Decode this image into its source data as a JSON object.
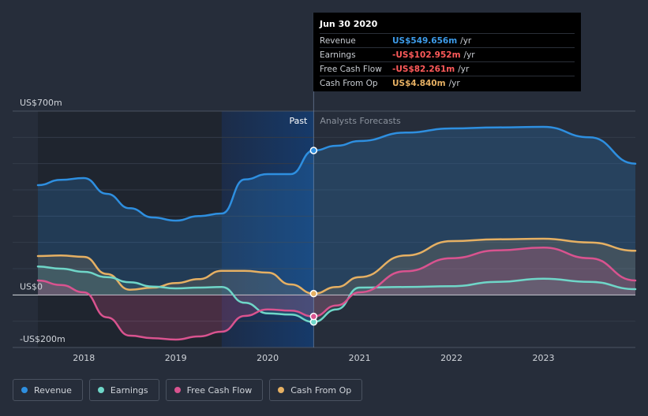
{
  "tooltip": {
    "date": "Jun 30 2020",
    "rows": [
      {
        "label": "Revenue",
        "value": "US$549.656m",
        "unit": "/yr",
        "color": "#3d9be9"
      },
      {
        "label": "Earnings",
        "value": "-US$102.952m",
        "unit": "/yr",
        "color": "#ff5a5a"
      },
      {
        "label": "Free Cash Flow",
        "value": "-US$82.261m",
        "unit": "/yr",
        "color": "#ff5a5a"
      },
      {
        "label": "Cash From Op",
        "value": "US$4.840m",
        "unit": "/yr",
        "color": "#e6b063"
      }
    ]
  },
  "legend": [
    {
      "label": "Revenue",
      "color": "#2e8fe0"
    },
    {
      "label": "Earnings",
      "color": "#6fd6c8"
    },
    {
      "label": "Free Cash Flow",
      "color": "#d9538f"
    },
    {
      "label": "Cash From Op",
      "color": "#e6b063"
    }
  ],
  "chart_data": {
    "type": "line",
    "title": "",
    "xlabel": "",
    "ylabel": "",
    "ylim": [
      -200,
      700
    ],
    "xlim": [
      2017.5,
      2024.0
    ],
    "y_tick_labels": [
      {
        "value": 700,
        "label": "US$700m"
      },
      {
        "value": 0,
        "label": "US$0"
      },
      {
        "value": -200,
        "label": "-US$200m"
      }
    ],
    "x_ticks": [
      {
        "value": 2018,
        "label": "2018"
      },
      {
        "value": 2019,
        "label": "2019"
      },
      {
        "value": 2020,
        "label": "2020"
      },
      {
        "value": 2021,
        "label": "2021"
      },
      {
        "value": 2022,
        "label": "2022"
      },
      {
        "value": 2023,
        "label": "2023"
      }
    ],
    "divider_x": 2020.5,
    "past_label": "Past",
    "forecast_label": "Analysts Forecasts",
    "series": [
      {
        "name": "Revenue",
        "color": "#2e8fe0",
        "x": [
          2017.5,
          2017.75,
          2018.0,
          2018.25,
          2018.5,
          2018.75,
          2019.0,
          2019.25,
          2019.5,
          2019.75,
          2020.0,
          2020.25,
          2020.5,
          2020.75,
          2021.0,
          2021.5,
          2022.0,
          2022.5,
          2023.0,
          2023.5,
          2024.0
        ],
        "y": [
          418,
          438,
          445,
          385,
          330,
          295,
          283,
          300,
          310,
          440,
          460,
          460,
          550,
          568,
          586,
          618,
          634,
          638,
          640,
          600,
          500
        ]
      },
      {
        "name": "Earnings",
        "color": "#6fd6c8",
        "x": [
          2017.5,
          2017.75,
          2018.0,
          2018.25,
          2018.5,
          2018.75,
          2019.0,
          2019.25,
          2019.5,
          2019.75,
          2020.0,
          2020.25,
          2020.5,
          2020.75,
          2021.0,
          2021.5,
          2022.0,
          2022.5,
          2023.0,
          2023.5,
          2024.0
        ],
        "y": [
          108,
          100,
          88,
          68,
          48,
          32,
          25,
          28,
          30,
          -30,
          -70,
          -75,
          -103,
          -55,
          28,
          30,
          33,
          50,
          62,
          50,
          22
        ]
      },
      {
        "name": "Free Cash Flow",
        "color": "#d9538f",
        "x": [
          2017.5,
          2017.75,
          2018.0,
          2018.25,
          2018.5,
          2018.75,
          2019.0,
          2019.25,
          2019.5,
          2019.75,
          2020.0,
          2020.25,
          2020.5,
          2020.75,
          2021.0,
          2021.5,
          2022.0,
          2022.5,
          2023.0,
          2023.5,
          2024.0
        ],
        "y": [
          55,
          38,
          10,
          -85,
          -155,
          -165,
          -170,
          -158,
          -140,
          -80,
          -55,
          -60,
          -82,
          -40,
          10,
          90,
          140,
          170,
          180,
          140,
          55
        ]
      },
      {
        "name": "Cash From Op",
        "color": "#e6b063",
        "x": [
          2017.5,
          2017.75,
          2018.0,
          2018.25,
          2018.5,
          2018.75,
          2019.0,
          2019.25,
          2019.5,
          2019.75,
          2020.0,
          2020.25,
          2020.5,
          2020.75,
          2021.0,
          2021.5,
          2022.0,
          2022.5,
          2023.0,
          2023.5,
          2024.0
        ],
        "y": [
          148,
          150,
          145,
          80,
          20,
          28,
          45,
          60,
          92,
          92,
          85,
          40,
          5,
          30,
          68,
          150,
          205,
          212,
          214,
          200,
          168
        ]
      }
    ]
  }
}
